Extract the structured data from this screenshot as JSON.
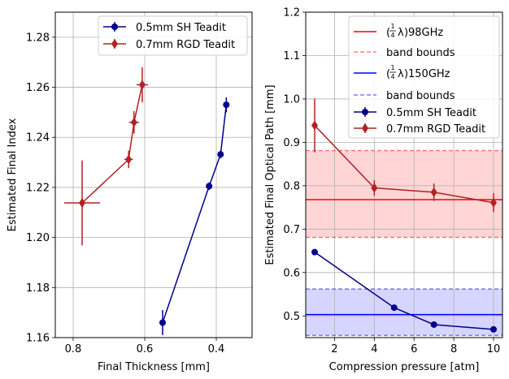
{
  "colors": {
    "sh": "#00008b",
    "rgd": "#b22222",
    "red_line": "#ff0000",
    "red_band": "#ffb3b3",
    "blue_line": "#0000ff",
    "blue_band": "#b3b3ff",
    "grid": "#b0b0b0"
  },
  "chart_data": [
    {
      "type": "scatter",
      "name": "left",
      "xlabel": "Final Thickness [mm]",
      "ylabel": "Estimated Final Index",
      "xlim": [
        0.85,
        0.3
      ],
      "ylim": [
        1.16,
        1.29
      ],
      "x_inverted": true,
      "grid": true,
      "legend_position": "top-right",
      "xticks": [
        0.8,
        0.6,
        0.4
      ],
      "xtick_labels": [
        "0.8",
        "0.6",
        "0.4"
      ],
      "yticks": [
        1.16,
        1.18,
        1.2,
        1.22,
        1.24,
        1.26,
        1.28
      ],
      "ytick_labels": [
        "1.16",
        "1.18",
        "1.20",
        "1.22",
        "1.24",
        "1.26",
        "1.28"
      ],
      "series": [
        {
          "name": "0.5mm SH Teadit",
          "marker": "circle",
          "x": [
            0.55,
            0.42,
            0.388,
            0.372
          ],
          "y": [
            1.166,
            1.2205,
            1.2332,
            1.253
          ],
          "yerr": [
            0.005,
            0.0015,
            0.0015,
            0.003
          ],
          "xerr": [
            0.0,
            0.0,
            0.0,
            0.0
          ]
        },
        {
          "name": "0.7mm RGD Teadit",
          "marker": "diamond",
          "x": [
            0.775,
            0.645,
            0.63,
            0.607
          ],
          "y": [
            1.2138,
            1.2312,
            1.246,
            1.261
          ],
          "yerr": [
            0.017,
            0.0035,
            0.0045,
            0.007
          ],
          "xerr": [
            0.05,
            0.012,
            0.014,
            0.016
          ]
        }
      ]
    },
    {
      "type": "line",
      "name": "right",
      "xlabel": "Compression pressure [atm]",
      "ylabel": "Estimated Final Optical Path [mm]",
      "xlim": [
        0.55,
        10.45
      ],
      "ylim": [
        0.45,
        1.2
      ],
      "grid": true,
      "legend_position": "top-right",
      "xticks": [
        2,
        4,
        6,
        8,
        10
      ],
      "xtick_labels": [
        "2",
        "4",
        "6",
        "8",
        "10"
      ],
      "yticks": [
        0.5,
        0.6,
        0.7,
        0.8,
        0.9,
        1.0,
        1.1,
        1.2
      ],
      "ytick_labels": [
        "0.5",
        "0.6",
        "0.7",
        "0.8",
        "0.9",
        "1.0",
        "1.1",
        "1.2"
      ],
      "bands": [
        {
          "name": "(1/4 λ)98GHz",
          "center": 0.768,
          "low": 0.681,
          "high": 0.881,
          "line_color_key": "red_line",
          "fill_color_key": "red_band"
        },
        {
          "name": "(1/4 λ)150GHz",
          "center": 0.503,
          "low": 0.455,
          "high": 0.562,
          "line_color_key": "blue_line",
          "fill_color_key": "blue_band"
        }
      ],
      "series": [
        {
          "name": "0.5mm SH Teadit",
          "marker": "circle",
          "x": [
            1,
            5,
            7,
            10
          ],
          "y": [
            0.647,
            0.519,
            0.48,
            0.469
          ],
          "yerr": [
            0.004,
            0.004,
            0.003,
            0.003
          ]
        },
        {
          "name": "0.7mm RGD Teadit",
          "marker": "diamond",
          "x": [
            1,
            4,
            7,
            10
          ],
          "y": [
            0.939,
            0.795,
            0.785,
            0.761
          ],
          "yerr": [
            0.062,
            0.018,
            0.02,
            0.022
          ]
        }
      ],
      "legend_entries": [
        {
          "label": "98GHz",
          "kind": "line",
          "color_key": "red_line",
          "fraction": true
        },
        {
          "label": "band bounds",
          "kind": "dashed",
          "color_key": "red_line",
          "fraction": false
        },
        {
          "label": "150GHz",
          "kind": "line",
          "color_key": "blue_line",
          "fraction": true
        },
        {
          "label": "band bounds",
          "kind": "dashed",
          "color_key": "blue_line",
          "fraction": false
        },
        {
          "label": "0.5mm SH Teadit",
          "kind": "series-circle",
          "color_key": "sh",
          "fraction": false
        },
        {
          "label": "0.7mm RGD Teadit",
          "kind": "series-diamond",
          "color_key": "rgd",
          "fraction": false
        }
      ]
    }
  ],
  "legend_fraction": {
    "num": "1",
    "den": "4",
    "sym": "λ"
  }
}
